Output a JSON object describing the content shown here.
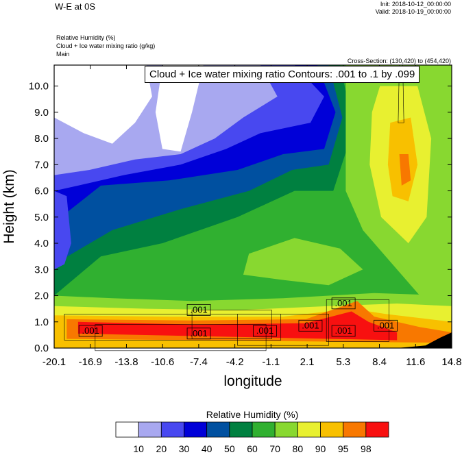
{
  "header": {
    "title": "W-E at 0S",
    "init": "Init: 2018-10-12_00:00:00",
    "valid": "Valid: 2018-10-19_00:00:00",
    "field1": "Relative Humidity   (%)",
    "field2": "Cloud + Ice water mixing ratio   (g/kg)",
    "field3": "Main",
    "cross_section": "Cross-Section: (130,420) to (454,420)"
  },
  "chart_data": {
    "type": "heatmap",
    "title": "Cloud + Ice water mixing ratio Contours: .001 to .1 by .099",
    "xlabel": "longitude",
    "ylabel": "Height (km)",
    "x_ticks": [
      "-20.1",
      "-16.9",
      "-13.8",
      "-10.6",
      "-7.4",
      "-4.2",
      "-1.1",
      "2.1",
      "5.3",
      "8.4",
      "11.6",
      "14.8"
    ],
    "y_ticks": [
      "0.0",
      "1.0",
      "2.0",
      "3.0",
      "4.0",
      "5.0",
      "6.0",
      "7.0",
      "8.0",
      "9.0",
      "10.0"
    ],
    "xlim": [
      -20.1,
      14.8
    ],
    "ylim": [
      0,
      10.8
    ],
    "contour_labels": [
      {
        "text": ".001",
        "x": -16.9,
        "y": 0.55
      },
      {
        "text": ".001",
        "x": -7.4,
        "y": 1.35
      },
      {
        "text": ".001",
        "x": -7.4,
        "y": 0.45
      },
      {
        "text": ".001",
        "x": -1.6,
        "y": 0.55
      },
      {
        "text": ".001",
        "x": 2.4,
        "y": 0.75
      },
      {
        "text": ".001",
        "x": 5.3,
        "y": 1.6
      },
      {
        "text": ".001",
        "x": 5.3,
        "y": 0.55
      },
      {
        "text": ".001",
        "x": 9.0,
        "y": 0.75
      }
    ],
    "colorbar": {
      "title": "Relative Humidity  (%)",
      "levels": [
        "10",
        "20",
        "30",
        "40",
        "50",
        "60",
        "70",
        "80",
        "90",
        "95",
        "98"
      ],
      "colors": [
        "#ffffff",
        "#a8a8f0",
        "#4848f0",
        "#0000d8",
        "#0050a0",
        "#008040",
        "#30b030",
        "#88d830",
        "#e8f030",
        "#f8c000",
        "#f87800",
        "#f81010"
      ]
    }
  }
}
